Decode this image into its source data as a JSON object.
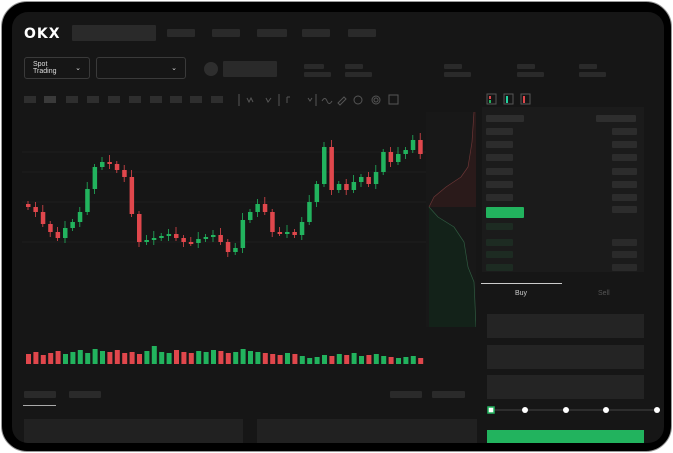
{
  "header": {
    "brand": "OKX",
    "nav_items": 5
  },
  "toolbar": {
    "market_selector_label": "Spot Trading"
  },
  "order_form": {
    "tabs": [
      {
        "label": "Buy",
        "active": true
      },
      {
        "label": "Sell",
        "active": false
      }
    ],
    "slider_percent": 0
  },
  "colors": {
    "up": "#22b35e",
    "down": "#e0474c",
    "background": "#161616"
  },
  "chart_data": {
    "type": "candlestick",
    "closes": [
      55,
      50,
      38,
      30,
      24,
      34,
      40,
      50,
      73,
      95,
      100,
      98,
      92,
      85,
      48,
      20,
      22,
      24,
      26,
      28,
      24,
      20,
      19,
      23,
      25,
      27,
      20,
      10,
      14,
      42,
      50,
      58,
      50,
      30,
      29,
      30,
      27,
      40,
      60,
      78,
      115,
      72,
      78,
      72,
      80,
      85,
      78,
      90,
      110,
      100,
      108,
      112,
      122,
      108
    ],
    "volumes": [
      10,
      12,
      9,
      11,
      13,
      10,
      12,
      14,
      11,
      15,
      13,
      12,
      14,
      11,
      12,
      10,
      13,
      18,
      12,
      11,
      14,
      12,
      11,
      13,
      12,
      14,
      13,
      11,
      12,
      15,
      13,
      12,
      11,
      10,
      9,
      11,
      10,
      8,
      6,
      7,
      9,
      8,
      10,
      9,
      11,
      8,
      9,
      10,
      8,
      7,
      6,
      7,
      8,
      6
    ]
  }
}
